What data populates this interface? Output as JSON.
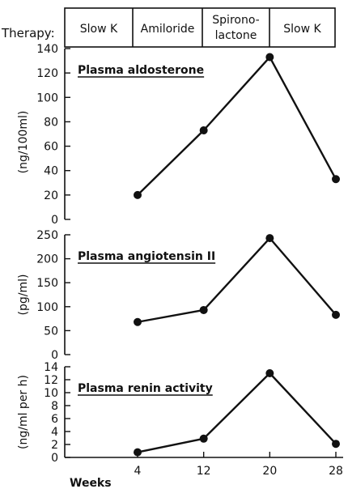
{
  "therapy": {
    "label": "Therapy:",
    "periods": [
      {
        "lines": [
          "Slow K"
        ]
      },
      {
        "lines": [
          "Amiloride"
        ]
      },
      {
        "lines": [
          "Spirono-",
          "lactone"
        ]
      },
      {
        "lines": [
          "Slow K"
        ]
      }
    ]
  },
  "chart_data": [
    {
      "type": "line",
      "title": "Plasma aldosterone",
      "ylabel": "(ng/100ml)",
      "xlabel": "Weeks",
      "ylim": [
        0,
        140
      ],
      "yticks": [
        "0",
        "20",
        "40",
        "60",
        "80",
        "100",
        "120",
        "140"
      ],
      "x": [
        4,
        12,
        20,
        28
      ],
      "values": [
        20,
        73,
        133,
        33
      ]
    },
    {
      "type": "line",
      "title": "Plasma angiotensin II",
      "ylabel": "(pg/ml)",
      "xlabel": "Weeks",
      "ylim": [
        0,
        250
      ],
      "yticks": [
        "0",
        "50",
        "100",
        "150",
        "200",
        "250"
      ],
      "x": [
        4,
        12,
        20,
        28
      ],
      "values": [
        68,
        93,
        243,
        83
      ]
    },
    {
      "type": "line",
      "title": "Plasma renin activity",
      "ylabel": "(ng/ml per h)",
      "xlabel": "Weeks",
      "ylim": [
        0,
        14
      ],
      "yticks": [
        "0",
        "2",
        "4",
        "6",
        "8",
        "10",
        "12",
        "14"
      ],
      "x": [
        4,
        12,
        20,
        28
      ],
      "values": [
        0.8,
        2.9,
        13,
        2.1
      ]
    }
  ],
  "x_axis": {
    "label": "Weeks",
    "ticks": [
      "4",
      "12",
      "20",
      "28"
    ]
  }
}
